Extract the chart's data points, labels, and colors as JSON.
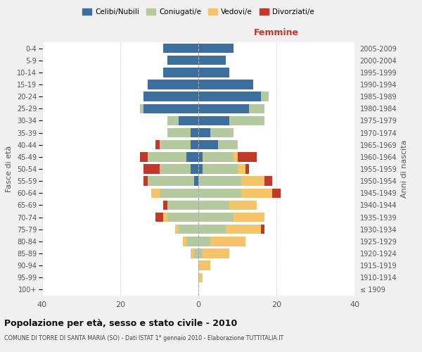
{
  "age_groups": [
    "100+",
    "95-99",
    "90-94",
    "85-89",
    "80-84",
    "75-79",
    "70-74",
    "65-69",
    "60-64",
    "55-59",
    "50-54",
    "45-49",
    "40-44",
    "35-39",
    "30-34",
    "25-29",
    "20-24",
    "15-19",
    "10-14",
    "5-9",
    "0-4"
  ],
  "birth_years": [
    "≤ 1909",
    "1910-1914",
    "1915-1919",
    "1920-1924",
    "1925-1929",
    "1930-1934",
    "1935-1939",
    "1940-1944",
    "1945-1949",
    "1950-1954",
    "1955-1959",
    "1960-1964",
    "1965-1969",
    "1970-1974",
    "1975-1979",
    "1980-1984",
    "1985-1989",
    "1990-1994",
    "1995-1999",
    "2000-2004",
    "2005-2009"
  ],
  "male": {
    "celibi": [
      0,
      0,
      0,
      0,
      0,
      0,
      0,
      0,
      0,
      1,
      2,
      3,
      2,
      2,
      5,
      14,
      14,
      13,
      9,
      8,
      9
    ],
    "coniugati": [
      0,
      0,
      0,
      1,
      3,
      5,
      8,
      8,
      10,
      12,
      8,
      10,
      8,
      6,
      3,
      1,
      0,
      0,
      0,
      0,
      0
    ],
    "vedovi": [
      0,
      0,
      0,
      1,
      1,
      1,
      1,
      0,
      2,
      0,
      0,
      0,
      0,
      0,
      0,
      0,
      0,
      0,
      0,
      0,
      0
    ],
    "divorziati": [
      0,
      0,
      0,
      0,
      0,
      0,
      2,
      1,
      0,
      1,
      4,
      2,
      1,
      0,
      0,
      0,
      0,
      0,
      0,
      0,
      0
    ]
  },
  "female": {
    "nubili": [
      0,
      0,
      0,
      0,
      0,
      0,
      0,
      0,
      0,
      0,
      1,
      1,
      5,
      3,
      8,
      13,
      16,
      14,
      8,
      7,
      9
    ],
    "coniugate": [
      0,
      0,
      0,
      1,
      3,
      7,
      9,
      8,
      11,
      11,
      9,
      8,
      5,
      6,
      9,
      4,
      2,
      0,
      0,
      0,
      0
    ],
    "vedove": [
      0,
      1,
      3,
      7,
      9,
      9,
      8,
      7,
      8,
      6,
      2,
      1,
      0,
      0,
      0,
      0,
      0,
      0,
      0,
      0,
      0
    ],
    "divorziate": [
      0,
      0,
      0,
      0,
      0,
      1,
      0,
      0,
      2,
      2,
      1,
      5,
      0,
      0,
      0,
      0,
      0,
      0,
      0,
      0,
      0
    ]
  },
  "colors": {
    "celibi": "#3c6e9e",
    "coniugati": "#b5c9a0",
    "vedovi": "#f5c469",
    "divorziati": "#c0392b"
  },
  "xlim": 40,
  "title": "Popolazione per età, sesso e stato civile - 2010",
  "subtitle": "COMUNE DI TORRE DI SANTA MARIA (SO) - Dati ISTAT 1° gennaio 2010 - Elaborazione TUTTITALIA.IT",
  "ylabel_left": "Fasce di età",
  "ylabel_right": "Anni di nascita",
  "xlabel_right": "Femmine",
  "bg_color": "#f0f0f0",
  "plot_bg": "#ffffff"
}
